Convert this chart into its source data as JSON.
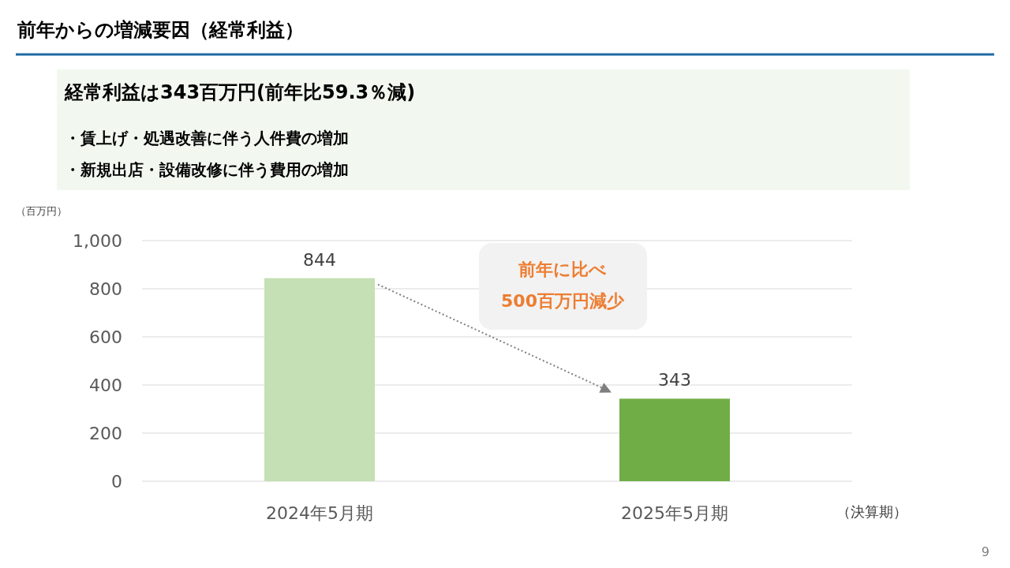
{
  "chart_data": {
    "type": "bar",
    "title": "前年からの増減要因（経常利益）",
    "subtitle": "経常利益は343百万円(前年比59.3％減)",
    "ylabel": "（百万円）",
    "xlabel": "（決算期）",
    "annotations": [
      "・賃上げ・処遇改善に伴う人件費の増加",
      "・新規出店・設備改修に伴う費用の増加",
      "前年に比べ\n500百万円減少",
      "9"
    ],
    "categories": [
      "2024年5月期",
      "2025年5月期"
    ],
    "values": [
      844,
      343
    ],
    "colors": [
      "#c5e0b4",
      "#70ad47"
    ],
    "ylim": [
      0,
      1000
    ],
    "yticks": [
      0,
      200,
      400,
      600,
      800,
      {
        "value": 1000,
        "label": "1,000"
      }
    ],
    "grid": "y",
    "data_labels": true
  }
}
